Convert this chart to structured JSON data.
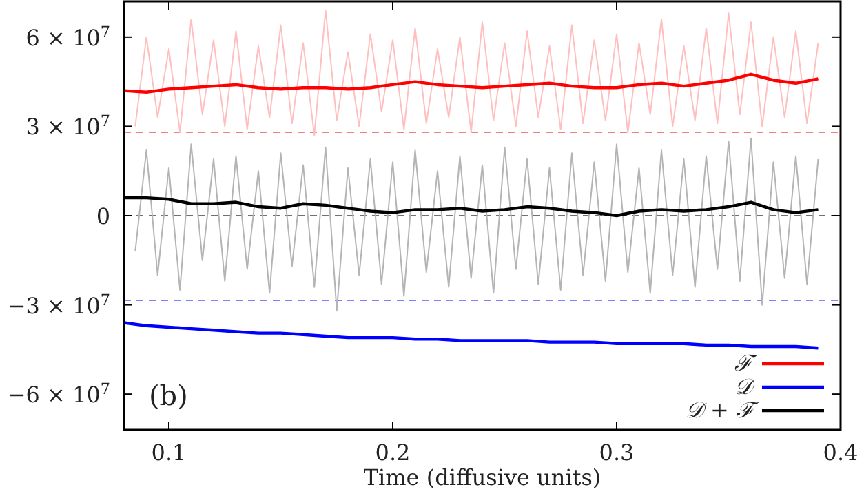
{
  "chart_data": {
    "type": "line",
    "xlabel": "Time (diffusive units)",
    "annotations": [
      "(b)"
    ],
    "xlim": [
      0.08,
      0.4
    ],
    "ylim": [
      -72000000,
      72000000
    ],
    "xticks": [
      0.1,
      0.2,
      0.3,
      0.4
    ],
    "yticks": [
      {
        "value": -60000000,
        "label": "−6 × 10$^{7}$"
      },
      {
        "value": -30000000,
        "label": "−3 × 10$^{7}$"
      },
      {
        "value": 0,
        "label": "0"
      },
      {
        "value": 30000000,
        "label": "3 × 10$^{7}$"
      },
      {
        "value": 60000000,
        "label": "6 × 10$^{7}$"
      }
    ],
    "grid": false,
    "legend": "bottom right",
    "line_style": "solid",
    "marker": "none",
    "ref_lines": [
      {
        "axis": "y",
        "value": 28000000,
        "label": null,
        "color": "#f08080",
        "line_style": "dashed"
      },
      {
        "axis": "y",
        "value": 0,
        "label": null,
        "color": "#707070",
        "line_style": "dashed"
      },
      {
        "axis": "y",
        "value": -28500000,
        "label": null,
        "color": "#8080ff",
        "line_style": "dashed"
      }
    ],
    "series": [
      {
        "color": "#ffbfbf",
        "x": [
          0.085,
          0.09,
          0.095,
          0.1,
          0.105,
          0.11,
          0.115,
          0.12,
          0.125,
          0.13,
          0.135,
          0.14,
          0.145,
          0.15,
          0.155,
          0.16,
          0.165,
          0.17,
          0.175,
          0.18,
          0.185,
          0.19,
          0.195,
          0.2,
          0.205,
          0.21,
          0.215,
          0.22,
          0.225,
          0.23,
          0.235,
          0.24,
          0.245,
          0.25,
          0.255,
          0.26,
          0.265,
          0.27,
          0.275,
          0.28,
          0.285,
          0.29,
          0.295,
          0.3,
          0.305,
          0.31,
          0.315,
          0.32,
          0.325,
          0.33,
          0.335,
          0.34,
          0.345,
          0.35,
          0.355,
          0.36,
          0.365,
          0.37,
          0.375,
          0.38,
          0.385,
          0.39
        ],
        "values": [
          30000000.0,
          60000000.0,
          33000000.0,
          56000000.0,
          28000000.0,
          66000000.0,
          34000000.0,
          59000000.0,
          30000000.0,
          62000000.0,
          29000000.0,
          57000000.0,
          33000000.0,
          64000000.0,
          31000000.0,
          58000000.0,
          27000000.0,
          69000000.0,
          32000000.0,
          55000000.0,
          30000000.0,
          61000000.0,
          35000000.0,
          59000000.0,
          29000000.0,
          63000000.0,
          31000000.0,
          56000000.0,
          33000000.0,
          60000000.0,
          28000000.0,
          65000000.0,
          32000000.0,
          58000000.0,
          30000000.0,
          62000000.0,
          33000000.0,
          57000000.0,
          29000000.0,
          64000000.0,
          31000000.0,
          59000000.0,
          32000000.0,
          61000000.0,
          28000000.0,
          58000000.0,
          34000000.0,
          66000000.0,
          30000000.0,
          57000000.0,
          32000000.0,
          63000000.0,
          31000000.0,
          68000000.0,
          34000000.0,
          65000000.0,
          30000000.0,
          60000000.0,
          33000000.0,
          62000000.0,
          31000000.0,
          58000000.0
        ]
      },
      {
        "color": "#b4b4b4",
        "x": [
          0.085,
          0.09,
          0.095,
          0.1,
          0.105,
          0.11,
          0.115,
          0.12,
          0.125,
          0.13,
          0.135,
          0.14,
          0.145,
          0.15,
          0.155,
          0.16,
          0.165,
          0.17,
          0.175,
          0.18,
          0.185,
          0.19,
          0.195,
          0.2,
          0.205,
          0.21,
          0.215,
          0.22,
          0.225,
          0.23,
          0.235,
          0.24,
          0.245,
          0.25,
          0.255,
          0.26,
          0.265,
          0.27,
          0.275,
          0.28,
          0.285,
          0.29,
          0.295,
          0.3,
          0.305,
          0.31,
          0.315,
          0.32,
          0.325,
          0.33,
          0.335,
          0.34,
          0.345,
          0.35,
          0.355,
          0.36,
          0.365,
          0.37,
          0.375,
          0.38,
          0.385,
          0.39
        ],
        "values": [
          -12000000.0,
          22000000.0,
          -20000000.0,
          16000000.0,
          -25000000.0,
          24000000.0,
          -15000000.0,
          19000000.0,
          -22000000.0,
          20000000.0,
          -18000000.0,
          15000000.0,
          -26000000.0,
          21000000.0,
          -17000000.0,
          17000000.0,
          -24000000.0,
          23000000.0,
          -32000000.0,
          16000000.0,
          -20000000.0,
          19000000.0,
          -23000000.0,
          18000000.0,
          -27000000.0,
          22000000.0,
          -19000000.0,
          15000000.0,
          -24000000.0,
          20000000.0,
          -21000000.0,
          17000000.0,
          -26000000.0,
          23000000.0,
          -18000000.0,
          19000000.0,
          -23000000.0,
          16000000.0,
          -25000000.0,
          21000000.0,
          -20000000.0,
          18000000.0,
          -22000000.0,
          24000000.0,
          -19000000.0,
          16000000.0,
          -26000000.0,
          22000000.0,
          -20000000.0,
          19000000.0,
          -24000000.0,
          20000000.0,
          -18000000.0,
          25000000.0,
          -22000000.0,
          26000000.0,
          -30000000.0,
          18000000.0,
          -21000000.0,
          20000000.0,
          -23000000.0,
          19000000.0
        ]
      },
      {
        "name": "ℱ",
        "color": "#ff0000",
        "values": [
          42000000.0,
          41500000.0,
          42500000.0,
          43000000.0,
          43500000.0,
          44000000.0,
          43000000.0,
          42500000.0,
          43000000.0,
          43000000.0,
          42500000.0,
          43000000.0,
          44000000.0,
          45000000.0,
          44000000.0,
          43500000.0,
          43000000.0,
          43500000.0,
          44000000.0,
          44500000.0,
          43500000.0,
          43000000.0,
          43000000.0,
          44000000.0,
          44500000.0,
          43500000.0,
          44500000.0,
          45500000.0,
          47500000.0,
          45500000.0,
          44500000.0,
          46000000.0
        ]
      },
      {
        "name": "𝒟",
        "color": "#0000ff",
        "values": [
          -36000000.0,
          -37000000.0,
          -37500000.0,
          -38000000.0,
          -38500000.0,
          -39000000.0,
          -39500000.0,
          -39500000.0,
          -40000000.0,
          -40500000.0,
          -41000000.0,
          -41000000.0,
          -41000000.0,
          -41500000.0,
          -41500000.0,
          -42000000.0,
          -42000000.0,
          -42000000.0,
          -42000000.0,
          -42500000.0,
          -42500000.0,
          -42500000.0,
          -43000000.0,
          -43000000.0,
          -43000000.0,
          -43000000.0,
          -43500000.0,
          -43500000.0,
          -44000000.0,
          -44000000.0,
          -44000000.0,
          -44500000.0
        ]
      },
      {
        "name": "𝒟 + ℱ",
        "color": "#000000",
        "values": [
          6000000.0,
          6000000.0,
          5500000.0,
          4000000.0,
          4000000.0,
          4500000.0,
          3000000.0,
          2500000.0,
          4000000.0,
          3500000.0,
          2500000.0,
          1500000.0,
          1000000.0,
          2000000.0,
          2000000.0,
          2500000.0,
          1500000.0,
          2000000.0,
          3000000.0,
          2500000.0,
          1500000.0,
          1000000.0,
          0,
          1500000.0,
          2000000.0,
          1500000.0,
          2000000.0,
          3000000.0,
          4500000.0,
          2000000.0,
          1000000.0,
          2000000.0
        ]
      }
    ],
    "x": [
      0.08,
      0.09,
      0.1,
      0.11,
      0.12,
      0.13,
      0.14,
      0.15,
      0.16,
      0.17,
      0.18,
      0.19,
      0.2,
      0.21,
      0.22,
      0.23,
      0.24,
      0.25,
      0.26,
      0.27,
      0.28,
      0.29,
      0.3,
      0.31,
      0.32,
      0.33,
      0.34,
      0.35,
      0.36,
      0.37,
      0.38,
      0.39
    ]
  }
}
